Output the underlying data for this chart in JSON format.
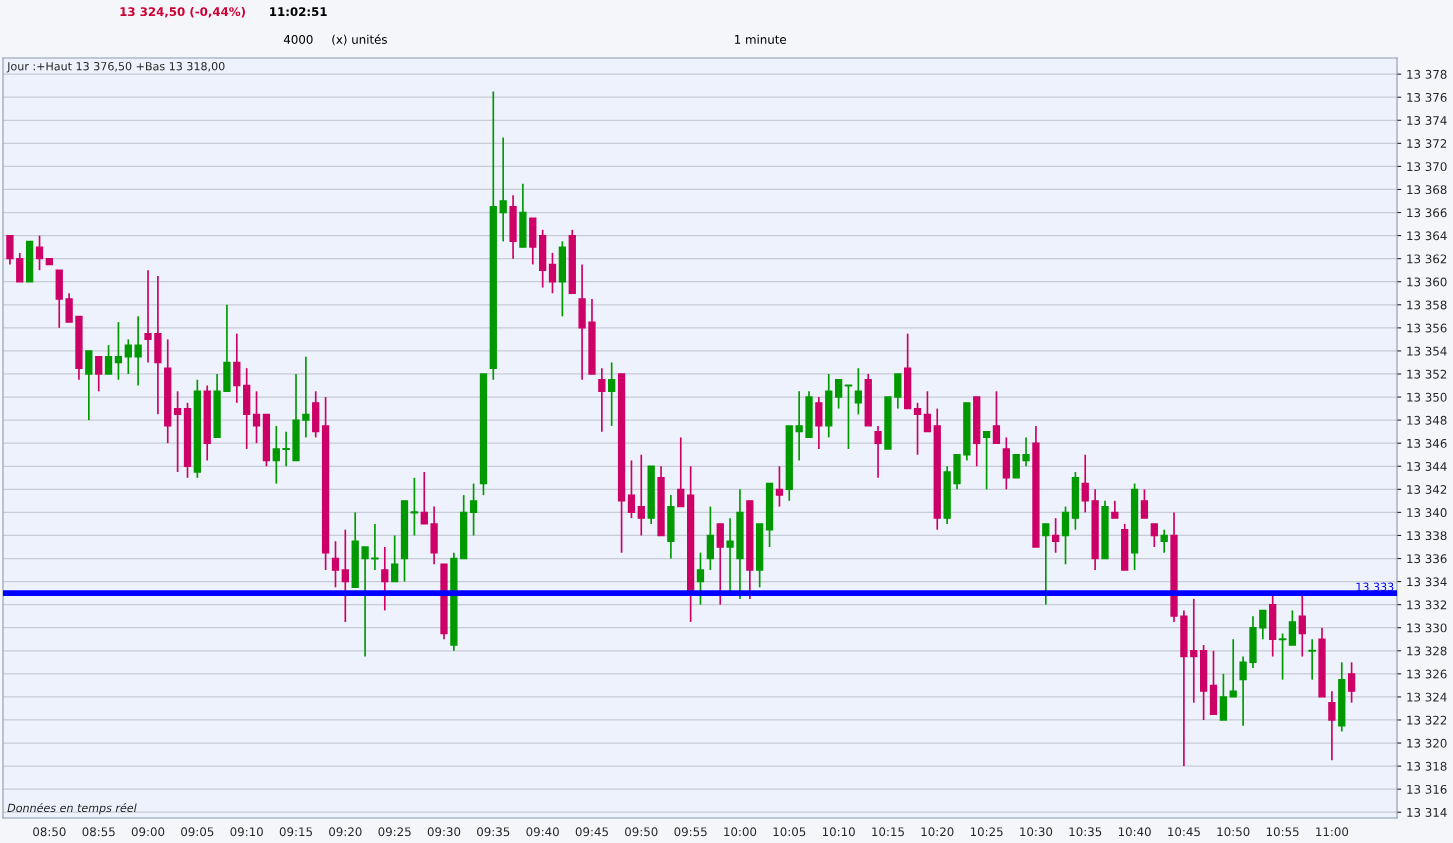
{
  "chart_data": {
    "type": "candlestick",
    "x": [
      8.7667,
      8.7833,
      8.8,
      8.8167,
      8.8333,
      8.85,
      8.8667,
      8.8833,
      8.9,
      8.9167,
      8.9333,
      8.95,
      8.9667,
      8.9833,
      9,
      9.0167,
      9.0333,
      9.05,
      9.0667,
      9.0833,
      9.1,
      9.1167,
      9.1333,
      9.15,
      9.1667,
      9.1833,
      9.2,
      9.2167,
      9.2333,
      9.25,
      9.2667,
      9.2833,
      9.3,
      9.3167,
      9.3333,
      9.35,
      9.3667,
      9.3833,
      9.4,
      9.4167,
      9.4333,
      9.45,
      9.4667,
      9.4833,
      9.5,
      9.5167,
      9.5333,
      9.55,
      9.5667,
      9.5833,
      9.6,
      9.6167,
      9.6333,
      9.65,
      9.6667,
      9.6833,
      9.7,
      9.7167,
      9.7333,
      9.75,
      9.7667,
      9.7833,
      9.8,
      9.8167,
      9.8333,
      9.85,
      9.8667,
      9.8833,
      9.9,
      9.9167,
      9.9333,
      9.95,
      9.9667,
      9.9833,
      10,
      10.0167,
      10.0333,
      10.05,
      10.0667,
      10.0833,
      10.1,
      10.1167,
      10.1333,
      10.15,
      10.1667,
      10.1833,
      10.2,
      10.2167,
      10.2333,
      10.25,
      10.2667,
      10.2833,
      10.3,
      10.3167,
      10.3333,
      10.35,
      10.3667,
      10.3833,
      10.4,
      10.4167,
      10.4333,
      10.45,
      10.4667,
      10.4833,
      10.5,
      10.5167,
      10.5333,
      10.55,
      10.5667,
      10.5833,
      10.6,
      10.6167,
      10.6333,
      10.65,
      10.6667,
      10.6833,
      10.7,
      10.7167,
      10.7333,
      10.75,
      10.7667,
      10.7833,
      10.8,
      10.8167,
      10.8333,
      10.85,
      10.8667,
      10.8833,
      10.9,
      10.9167,
      10.9333,
      10.95,
      10.9667,
      10.9833,
      11,
      11.0167,
      11.0333
    ],
    "ohlc": [
      [
        13364,
        13364,
        13361.5,
        13362
      ],
      [
        13362,
        13362.5,
        13360,
        13360
      ],
      [
        13360,
        13363.5,
        13360,
        13363.5
      ],
      [
        13363,
        13364,
        13361,
        13362
      ],
      [
        13362,
        13362,
        13361.5,
        13361.5
      ],
      [
        13361,
        13361,
        13356,
        13358.5
      ],
      [
        13358.5,
        13359,
        13356.5,
        13356.5
      ],
      [
        13357,
        13357,
        13351.5,
        13352.5
      ],
      [
        13352,
        13354,
        13348,
        13354
      ],
      [
        13353.5,
        13353.5,
        13350.5,
        13352
      ],
      [
        13352,
        13354.5,
        13352,
        13353.5
      ],
      [
        13353,
        13356.5,
        13351.5,
        13353.5
      ],
      [
        13353.5,
        13355,
        13352,
        13354.5
      ],
      [
        13353.5,
        13357,
        13351,
        13354.5
      ],
      [
        13355.5,
        13361,
        13353,
        13355
      ],
      [
        13355.5,
        13360.5,
        13348.5,
        13353
      ],
      [
        13352.5,
        13355,
        13346,
        13347.5
      ],
      [
        13349,
        13350.5,
        13343.5,
        13348.5
      ],
      [
        13349,
        13349.5,
        13343,
        13344
      ],
      [
        13343.5,
        13351.5,
        13343,
        13350.5
      ],
      [
        13350.5,
        13351,
        13344.5,
        13346
      ],
      [
        13346.5,
        13352,
        13346.5,
        13350.5
      ],
      [
        13350.5,
        13358,
        13350.5,
        13353
      ],
      [
        13353,
        13355.5,
        13349.5,
        13351
      ],
      [
        13351,
        13352.5,
        13345.5,
        13348.5
      ],
      [
        13348.5,
        13350.5,
        13346,
        13347.5
      ],
      [
        13348.5,
        13348.5,
        13344,
        13344.5
      ],
      [
        13344.5,
        13347.5,
        13342.5,
        13345.5
      ],
      [
        13345.5,
        13347,
        13344,
        13345.5
      ],
      [
        13344.5,
        13352,
        13344.5,
        13348
      ],
      [
        13348,
        13353.5,
        13346.5,
        13348.5
      ],
      [
        13349.5,
        13350.5,
        13346.5,
        13347
      ],
      [
        13347.5,
        13350,
        13335,
        13336.5
      ],
      [
        13336,
        13337.5,
        13333.5,
        13335
      ],
      [
        13335,
        13338.5,
        13330.5,
        13334
      ],
      [
        13333.5,
        13340,
        13333.5,
        13337.5
      ],
      [
        13336,
        13337,
        13327.5,
        13337
      ],
      [
        13336,
        13339,
        13335,
        13336
      ],
      [
        13335,
        13337,
        13331.5,
        13334
      ],
      [
        13334,
        13338,
        13334,
        13335.5
      ],
      [
        13336,
        13341,
        13334,
        13341
      ],
      [
        13340,
        13343,
        13338,
        13340
      ],
      [
        13340,
        13343.5,
        13339,
        13339
      ],
      [
        13339,
        13340.5,
        13335.5,
        13336.5
      ],
      [
        13335.5,
        13335.5,
        13329,
        13329.5
      ],
      [
        13328.5,
        13336.5,
        13328,
        13336
      ],
      [
        13336,
        13341.5,
        13336,
        13340
      ],
      [
        13340,
        13342.5,
        13338,
        13341
      ],
      [
        13342.5,
        13352,
        13341.5,
        13352
      ],
      [
        13352.5,
        13376.5,
        13351.5,
        13366.5
      ],
      [
        13366,
        13372.5,
        13363.5,
        13367
      ],
      [
        13366.5,
        13367.5,
        13362,
        13363.5
      ],
      [
        13363,
        13368.5,
        13363,
        13366
      ],
      [
        13365.5,
        13365.5,
        13361.5,
        13363
      ],
      [
        13364,
        13364.5,
        13359.5,
        13361
      ],
      [
        13361.5,
        13362.5,
        13359,
        13360
      ],
      [
        13360,
        13363.5,
        13357,
        13363
      ],
      [
        13364,
        13364.5,
        13359,
        13359
      ],
      [
        13358.5,
        13361.5,
        13351.5,
        13356
      ],
      [
        13356.5,
        13358.5,
        13352,
        13352
      ],
      [
        13351.5,
        13352.5,
        13347,
        13350.5
      ],
      [
        13350.5,
        13353,
        13347.5,
        13351.5
      ],
      [
        13352,
        13352,
        13336.5,
        13341
      ],
      [
        13341.5,
        13344.5,
        13339.5,
        13340
      ],
      [
        13340.5,
        13345,
        13338,
        13339.5
      ],
      [
        13339.5,
        13344,
        13339,
        13344
      ],
      [
        13343,
        13344,
        13338,
        13338
      ],
      [
        13337.5,
        13341.5,
        13336,
        13340.5
      ],
      [
        13342,
        13346.5,
        13340.5,
        13340.5
      ],
      [
        13341.5,
        13344,
        13330.5,
        13333
      ],
      [
        13334,
        13336.5,
        13332,
        13335
      ],
      [
        13336,
        13340.5,
        13335,
        13338
      ],
      [
        13339,
        13339,
        13332,
        13337
      ],
      [
        13337,
        13339.5,
        13333,
        13337.5
      ],
      [
        13336,
        13342,
        13332.5,
        13340
      ],
      [
        13341,
        13341,
        13332.5,
        13335
      ],
      [
        13335,
        13339,
        13333.5,
        13339
      ],
      [
        13338.5,
        13342.5,
        13337,
        13342.5
      ],
      [
        13342,
        13344,
        13340.5,
        13341.5
      ],
      [
        13342,
        13347.5,
        13341,
        13347.5
      ],
      [
        13347,
        13350.5,
        13344.5,
        13347.5
      ],
      [
        13346.5,
        13350.5,
        13346.5,
        13350
      ],
      [
        13349.5,
        13350,
        13345.5,
        13347.5
      ],
      [
        13347.5,
        13352,
        13346.5,
        13350.5
      ],
      [
        13350,
        13351.5,
        13349,
        13351.5
      ],
      [
        13351,
        13351,
        13345.5,
        13351
      ],
      [
        13349.5,
        13352.5,
        13348.5,
        13350.5
      ],
      [
        13351.5,
        13352,
        13347.5,
        13347.5
      ],
      [
        13347,
        13347.5,
        13343,
        13346
      ],
      [
        13345.5,
        13350,
        13345.5,
        13350
      ],
      [
        13350,
        13352,
        13349,
        13352
      ],
      [
        13352.5,
        13355.5,
        13349,
        13349
      ],
      [
        13349,
        13349.5,
        13345,
        13348.5
      ],
      [
        13348.5,
        13350.5,
        13347,
        13347
      ],
      [
        13347.5,
        13349,
        13338.5,
        13339.5
      ],
      [
        13339.5,
        13344,
        13339,
        13343.5
      ],
      [
        13342.5,
        13345,
        13342,
        13345
      ],
      [
        13345,
        13349.5,
        13344.5,
        13349.5
      ],
      [
        13350,
        13350,
        13344,
        13346
      ],
      [
        13346.5,
        13347,
        13342,
        13347
      ],
      [
        13347.5,
        13350.5,
        13346,
        13346
      ],
      [
        13345.5,
        13346.5,
        13342,
        13343
      ],
      [
        13343,
        13345,
        13343,
        13345
      ],
      [
        13344.5,
        13346.5,
        13344,
        13345
      ],
      [
        13346,
        13347.5,
        13337,
        13337
      ],
      [
        13338,
        13339,
        13332,
        13339
      ],
      [
        13338,
        13339.5,
        13336.5,
        13337.5
      ],
      [
        13338,
        13340.5,
        13335.5,
        13340
      ],
      [
        13339.5,
        13343.5,
        13338.5,
        13343
      ],
      [
        13342.5,
        13345,
        13340,
        13341
      ],
      [
        13341,
        13342,
        13335,
        13336
      ],
      [
        13336,
        13341,
        13336,
        13340.5
      ],
      [
        13340,
        13341,
        13339.5,
        13339.5
      ],
      [
        13338.5,
        13339,
        13335,
        13335
      ],
      [
        13336.5,
        13342.5,
        13335,
        13342
      ],
      [
        13341,
        13342,
        13339.5,
        13339.5
      ],
      [
        13339,
        13339,
        13337,
        13338
      ],
      [
        13337.5,
        13338.5,
        13336.5,
        13338
      ],
      [
        13338,
        13340,
        13330.5,
        13331
      ],
      [
        13331,
        13331.5,
        13318,
        13327.5
      ],
      [
        13328,
        13332.5,
        13323.5,
        13327.5
      ],
      [
        13328,
        13328.5,
        13322,
        13324.5
      ],
      [
        13325,
        13328,
        13322.5,
        13322.5
      ],
      [
        13322,
        13326,
        13322,
        13324
      ],
      [
        13324,
        13329,
        13324,
        13324.5
      ],
      [
        13325.5,
        13327.5,
        13321.5,
        13327
      ],
      [
        13327,
        13331,
        13326.5,
        13330
      ],
      [
        13330,
        13331.5,
        13329,
        13331.5
      ],
      [
        13332,
        13333,
        13327.5,
        13329
      ],
      [
        13329,
        13329.5,
        13325.5,
        13329
      ],
      [
        13328.5,
        13331.5,
        13328.5,
        13330.5
      ],
      [
        13331,
        13333,
        13327.5,
        13329.5
      ],
      [
        13328,
        13329,
        13325.5,
        13328
      ],
      [
        13329,
        13330,
        13324,
        13324
      ],
      [
        13323.5,
        13324.5,
        13318.5,
        13322
      ],
      [
        13321.5,
        13327,
        13321,
        13325.5
      ],
      [
        13326,
        13327,
        13323.5,
        13324.5
      ]
    ],
    "colors": [
      "#cc0066",
      "#cc0066",
      "#009900",
      "#cc0066",
      "#cc0066",
      "#cc0066",
      "#cc0066",
      "#cc0066",
      "#009900",
      "#cc0066",
      "#009900",
      "#009900",
      "#009900",
      "#009900",
      "#cc0066",
      "#cc0066",
      "#cc0066",
      "#cc0066",
      "#cc0066",
      "#009900",
      "#cc0066",
      "#009900",
      "#009900",
      "#cc0066",
      "#cc0066",
      "#cc0066",
      "#cc0066",
      "#009900",
      "#009900",
      "#009900",
      "#009900",
      "#cc0066",
      "#cc0066",
      "#cc0066",
      "#cc0066",
      "#009900",
      "#009900",
      "#009900",
      "#cc0066",
      "#009900",
      "#009900",
      "#009900",
      "#cc0066",
      "#cc0066",
      "#cc0066",
      "#009900",
      "#009900",
      "#009900",
      "#009900",
      "#009900",
      "#009900",
      "#cc0066",
      "#009900",
      "#cc0066",
      "#cc0066",
      "#cc0066",
      "#009900",
      "#cc0066",
      "#cc0066",
      "#cc0066",
      "#cc0066",
      "#009900",
      "#cc0066",
      "#cc0066",
      "#cc0066",
      "#009900",
      "#cc0066",
      "#009900",
      "#cc0066",
      "#cc0066",
      "#009900",
      "#009900",
      "#cc0066",
      "#009900",
      "#009900",
      "#cc0066",
      "#009900",
      "#009900",
      "#cc0066",
      "#009900",
      "#009900",
      "#009900",
      "#cc0066",
      "#009900",
      "#009900",
      "#009900",
      "#009900",
      "#cc0066",
      "#cc0066",
      "#009900",
      "#009900",
      "#cc0066",
      "#cc0066",
      "#cc0066",
      "#cc0066",
      "#009900",
      "#009900",
      "#009900",
      "#cc0066",
      "#009900",
      "#cc0066",
      "#cc0066",
      "#009900",
      "#009900",
      "#cc0066",
      "#009900",
      "#cc0066",
      "#009900",
      "#009900",
      "#cc0066",
      "#cc0066",
      "#009900",
      "#cc0066",
      "#cc0066",
      "#009900",
      "#cc0066",
      "#cc0066",
      "#009900",
      "#cc0066",
      "#cc0066",
      "#cc0066",
      "#cc0066",
      "#cc0066",
      "#009900",
      "#009900",
      "#009900",
      "#009900",
      "#009900",
      "#cc0066",
      "#009900",
      "#009900",
      "#cc0066",
      "#009900",
      "#cc0066",
      "#cc0066",
      "#009900",
      "#cc0066"
    ],
    "xlim": [
      8.755,
      11.11
    ],
    "xticks": [
      {
        "value": 8.8333,
        "label": "08:50"
      },
      {
        "value": 8.9167,
        "label": "08:55"
      },
      {
        "value": 9,
        "label": "09:00"
      },
      {
        "value": 9.0833,
        "label": "09:05"
      },
      {
        "value": 9.1667,
        "label": "09:10"
      },
      {
        "value": 9.25,
        "label": "09:15"
      },
      {
        "value": 9.3333,
        "label": "09:20"
      },
      {
        "value": 9.4167,
        "label": "09:25"
      },
      {
        "value": 9.5,
        "label": "09:30"
      },
      {
        "value": 9.5833,
        "label": "09:35"
      },
      {
        "value": 9.6667,
        "label": "09:40"
      },
      {
        "value": 9.75,
        "label": "09:45"
      },
      {
        "value": 9.8333,
        "label": "09:50"
      },
      {
        "value": 9.9167,
        "label": "09:55"
      },
      {
        "value": 10,
        "label": "10:00"
      },
      {
        "value": 10.0833,
        "label": "10:05"
      },
      {
        "value": 10.1667,
        "label": "10:10"
      },
      {
        "value": 10.25,
        "label": "10:15"
      },
      {
        "value": 10.3333,
        "label": "10:20"
      },
      {
        "value": 10.4167,
        "label": "10:25"
      },
      {
        "value": 10.5,
        "label": "10:30"
      },
      {
        "value": 10.5833,
        "label": "10:35"
      },
      {
        "value": 10.6667,
        "label": "10:40"
      },
      {
        "value": 10.75,
        "label": "10:45"
      },
      {
        "value": 10.8333,
        "label": "10:50"
      },
      {
        "value": 10.9167,
        "label": "10:55"
      },
      {
        "value": 11,
        "label": "11:00"
      }
    ],
    "ylim": [
      13313.5,
      13379.4
    ],
    "yticks": [
      {
        "value": 13314,
        "label": "13 314"
      },
      {
        "value": 13316,
        "label": "13 316"
      },
      {
        "value": 13318,
        "label": "13 318"
      },
      {
        "value": 13320,
        "label": "13 320"
      },
      {
        "value": 13322,
        "label": "13 322"
      },
      {
        "value": 13324,
        "label": "13 324"
      },
      {
        "value": 13326,
        "label": "13 326"
      },
      {
        "value": 13328,
        "label": "13 328"
      },
      {
        "value": 13330,
        "label": "13 330"
      },
      {
        "value": 13332,
        "label": "13 332"
      },
      {
        "value": 13334,
        "label": "13 334"
      },
      {
        "value": 13336,
        "label": "13 336"
      },
      {
        "value": 13338,
        "label": "13 338"
      },
      {
        "value": 13340,
        "label": "13 340"
      },
      {
        "value": 13342,
        "label": "13 342"
      },
      {
        "value": 13344,
        "label": "13 344"
      },
      {
        "value": 13346,
        "label": "13 346"
      },
      {
        "value": 13348,
        "label": "13 348"
      },
      {
        "value": 13350,
        "label": "13 350"
      },
      {
        "value": 13352,
        "label": "13 352"
      },
      {
        "value": 13354,
        "label": "13 354"
      },
      {
        "value": 13356,
        "label": "13 356"
      },
      {
        "value": 13358,
        "label": "13 358"
      },
      {
        "value": 13360,
        "label": "13 360"
      },
      {
        "value": 13362,
        "label": "13 362"
      },
      {
        "value": 13364,
        "label": "13 364"
      },
      {
        "value": 13366,
        "label": "13 366"
      },
      {
        "value": 13368,
        "label": "13 368"
      },
      {
        "value": 13370,
        "label": "13 370"
      },
      {
        "value": 13372,
        "label": "13 372"
      },
      {
        "value": 13374,
        "label": "13 374"
      },
      {
        "value": 13376,
        "label": "13 376"
      },
      {
        "value": 13378,
        "label": "13 378"
      }
    ],
    "grid": "y",
    "ref_lines": [
      {
        "axis": "y",
        "value": 13333,
        "label": "13 333",
        "color": "#0000ff"
      }
    ],
    "annotations": [
      "Jour :+Haut 13 376,50 +Bas 13 318,00",
      "Données en temps réel",
      "13 324,50 (-0,44%)",
      "11:02:51",
      "4000",
      "(x) unités",
      "1 minute"
    ]
  }
}
